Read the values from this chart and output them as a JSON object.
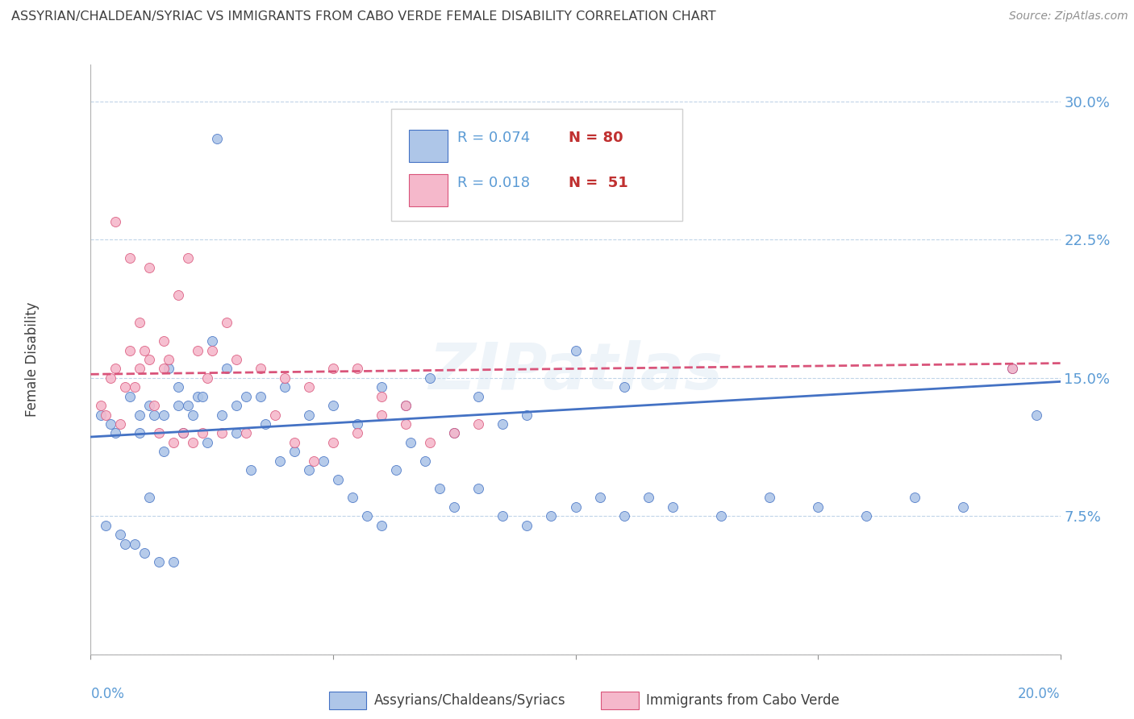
{
  "title": "ASSYRIAN/CHALDEAN/SYRIAC VS IMMIGRANTS FROM CABO VERDE FEMALE DISABILITY CORRELATION CHART",
  "source": "Source: ZipAtlas.com",
  "ylabel": "Female Disability",
  "yticks": [
    0.0,
    0.075,
    0.15,
    0.225,
    0.3
  ],
  "ytick_labels": [
    "",
    "7.5%",
    "15.0%",
    "22.5%",
    "30.0%"
  ],
  "xtick_labels": [
    "0.0%",
    "",
    "",
    "",
    "20.0%"
  ],
  "xlim": [
    0.0,
    0.2
  ],
  "ylim": [
    0.0,
    0.32
  ],
  "watermark": "ZIPatlas",
  "blue_color": "#aec6e8",
  "pink_color": "#f5b8cb",
  "line_blue_color": "#4472c4",
  "line_pink_color": "#d9547a",
  "title_color": "#404040",
  "axis_color": "#5b9bd5",
  "grid_color": "#c0d4e8",
  "legend_R1": "R = 0.074",
  "legend_N1": "N = 80",
  "legend_R2": "R = 0.018",
  "legend_N2": "N =  51",
  "label1": "Assyrians/Chaldeans/Syriacs",
  "label2": "Immigrants from Cabo Verde",
  "blue_scatter_x": [
    0.002,
    0.003,
    0.004,
    0.005,
    0.006,
    0.007,
    0.008,
    0.009,
    0.01,
    0.01,
    0.011,
    0.012,
    0.012,
    0.013,
    0.014,
    0.015,
    0.015,
    0.016,
    0.017,
    0.018,
    0.018,
    0.019,
    0.02,
    0.021,
    0.022,
    0.023,
    0.024,
    0.025,
    0.026,
    0.027,
    0.028,
    0.03,
    0.03,
    0.032,
    0.033,
    0.035,
    0.036,
    0.039,
    0.04,
    0.042,
    0.045,
    0.045,
    0.048,
    0.05,
    0.051,
    0.054,
    0.055,
    0.057,
    0.06,
    0.06,
    0.063,
    0.065,
    0.066,
    0.069,
    0.07,
    0.072,
    0.075,
    0.075,
    0.08,
    0.08,
    0.085,
    0.085,
    0.09,
    0.09,
    0.095,
    0.1,
    0.1,
    0.105,
    0.11,
    0.11,
    0.115,
    0.12,
    0.13,
    0.14,
    0.15,
    0.16,
    0.17,
    0.18,
    0.19,
    0.195
  ],
  "blue_scatter_y": [
    0.13,
    0.07,
    0.125,
    0.12,
    0.065,
    0.06,
    0.14,
    0.06,
    0.13,
    0.12,
    0.055,
    0.135,
    0.085,
    0.13,
    0.05,
    0.11,
    0.13,
    0.155,
    0.05,
    0.145,
    0.135,
    0.12,
    0.135,
    0.13,
    0.14,
    0.14,
    0.115,
    0.17,
    0.28,
    0.13,
    0.155,
    0.135,
    0.12,
    0.14,
    0.1,
    0.14,
    0.125,
    0.105,
    0.145,
    0.11,
    0.13,
    0.1,
    0.105,
    0.135,
    0.095,
    0.085,
    0.125,
    0.075,
    0.07,
    0.145,
    0.1,
    0.135,
    0.115,
    0.105,
    0.15,
    0.09,
    0.12,
    0.08,
    0.09,
    0.14,
    0.125,
    0.075,
    0.13,
    0.07,
    0.075,
    0.08,
    0.165,
    0.085,
    0.145,
    0.075,
    0.085,
    0.08,
    0.075,
    0.085,
    0.08,
    0.075,
    0.085,
    0.08,
    0.155,
    0.13
  ],
  "pink_scatter_x": [
    0.002,
    0.003,
    0.004,
    0.005,
    0.005,
    0.006,
    0.007,
    0.008,
    0.008,
    0.009,
    0.01,
    0.01,
    0.011,
    0.012,
    0.012,
    0.013,
    0.014,
    0.015,
    0.015,
    0.016,
    0.017,
    0.018,
    0.019,
    0.02,
    0.021,
    0.022,
    0.023,
    0.024,
    0.025,
    0.027,
    0.028,
    0.03,
    0.032,
    0.035,
    0.038,
    0.04,
    0.042,
    0.045,
    0.046,
    0.05,
    0.05,
    0.055,
    0.055,
    0.06,
    0.06,
    0.065,
    0.065,
    0.07,
    0.075,
    0.08,
    0.19
  ],
  "pink_scatter_y": [
    0.135,
    0.13,
    0.15,
    0.155,
    0.235,
    0.125,
    0.145,
    0.165,
    0.215,
    0.145,
    0.155,
    0.18,
    0.165,
    0.16,
    0.21,
    0.135,
    0.12,
    0.17,
    0.155,
    0.16,
    0.115,
    0.195,
    0.12,
    0.215,
    0.115,
    0.165,
    0.12,
    0.15,
    0.165,
    0.12,
    0.18,
    0.16,
    0.12,
    0.155,
    0.13,
    0.15,
    0.115,
    0.145,
    0.105,
    0.115,
    0.155,
    0.12,
    0.155,
    0.14,
    0.13,
    0.125,
    0.135,
    0.115,
    0.12,
    0.125,
    0.155
  ],
  "blue_line_x0": 0.0,
  "blue_line_x1": 0.2,
  "blue_line_y0": 0.118,
  "blue_line_y1": 0.148,
  "pink_line_x0": 0.0,
  "pink_line_x1": 0.2,
  "pink_line_y0": 0.152,
  "pink_line_y1": 0.158
}
